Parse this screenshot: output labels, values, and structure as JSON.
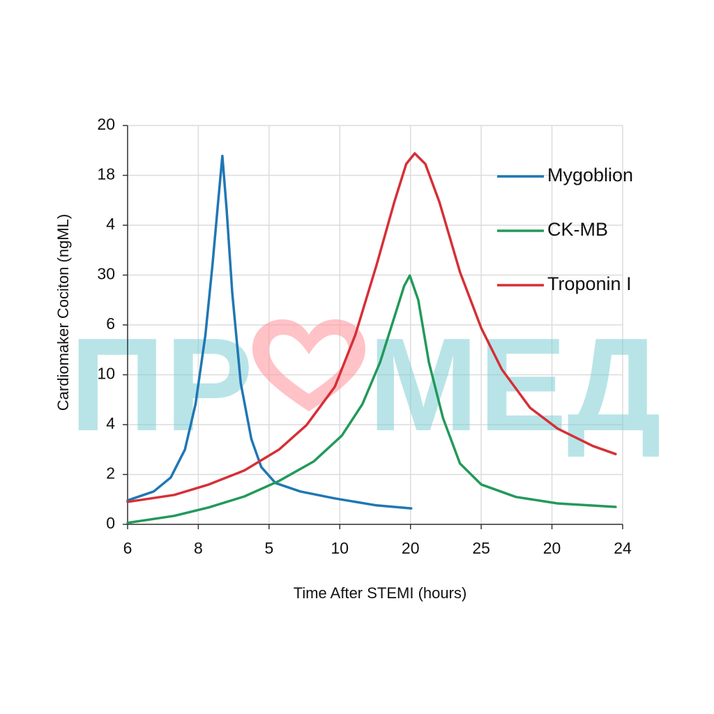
{
  "chart_data": {
    "type": "line",
    "x_label": "Time After STEMI (hours)",
    "y_label": "Cardiomaker Cociton (ngML)",
    "xlim": [
      0,
      7
    ],
    "xticks": [
      {
        "value": 0,
        "label": "6"
      },
      {
        "value": 1,
        "label": "8"
      },
      {
        "value": 2,
        "label": "5"
      },
      {
        "value": 3,
        "label": "10"
      },
      {
        "value": 4,
        "label": "20"
      },
      {
        "value": 5,
        "label": "25"
      },
      {
        "value": 6,
        "label": "20"
      },
      {
        "value": 7,
        "label": "24"
      }
    ],
    "ylim": [
      0,
      8
    ],
    "yticks": [
      {
        "value": 0,
        "label": "0"
      },
      {
        "value": 1,
        "label": "2"
      },
      {
        "value": 2,
        "label": "4"
      },
      {
        "value": 3,
        "label": "10"
      },
      {
        "value": 4,
        "label": "6"
      },
      {
        "value": 5,
        "label": "30"
      },
      {
        "value": 6,
        "label": "4"
      },
      {
        "value": 7,
        "label": "18"
      },
      {
        "value": 8,
        "label": "20"
      }
    ],
    "grid": true,
    "legend": "upper right",
    "watermark": [
      "ПР",
      "МЕД"
    ],
    "series": [
      {
        "name": "Mygoblion",
        "color": "#1f77b4",
        "x": [
          0,
          0.37,
          0.61,
          0.81,
          0.96,
          1.1,
          1.2,
          1.28,
          1.34,
          1.4,
          1.48,
          1.6,
          1.75,
          1.89,
          2.09,
          2.44,
          2.93,
          3.52,
          4.01
        ],
        "values": [
          0.48,
          0.66,
          0.94,
          1.5,
          2.41,
          3.8,
          5.2,
          6.46,
          7.39,
          6.32,
          4.64,
          2.83,
          1.71,
          1.15,
          0.83,
          0.66,
          0.52,
          0.38,
          0.32
        ]
      },
      {
        "name": "CK-MB",
        "color": "#22995a",
        "x": [
          0,
          0.66,
          1.15,
          1.65,
          2.14,
          2.63,
          3.03,
          3.32,
          3.57,
          3.77,
          3.91,
          3.99,
          4.11,
          4.26,
          4.46,
          4.7,
          5.0,
          5.49,
          6.08,
          6.9
        ],
        "values": [
          0.03,
          0.17,
          0.34,
          0.56,
          0.87,
          1.26,
          1.78,
          2.41,
          3.25,
          4.15,
          4.78,
          4.99,
          4.5,
          3.25,
          2.13,
          1.22,
          0.8,
          0.55,
          0.42,
          0.35
        ]
      },
      {
        "name": "Troponin I",
        "color": "#d62f36",
        "x": [
          0,
          0.66,
          1.15,
          1.65,
          2.14,
          2.53,
          2.93,
          3.22,
          3.52,
          3.77,
          3.94,
          4.06,
          4.21,
          4.41,
          4.7,
          5.0,
          5.29,
          5.69,
          6.08,
          6.58,
          6.9
        ],
        "values": [
          0.45,
          0.59,
          0.8,
          1.08,
          1.5,
          1.99,
          2.76,
          3.8,
          5.2,
          6.46,
          7.23,
          7.44,
          7.23,
          6.46,
          5.06,
          3.94,
          3.11,
          2.34,
          1.92,
          1.57,
          1.41
        ]
      }
    ]
  }
}
